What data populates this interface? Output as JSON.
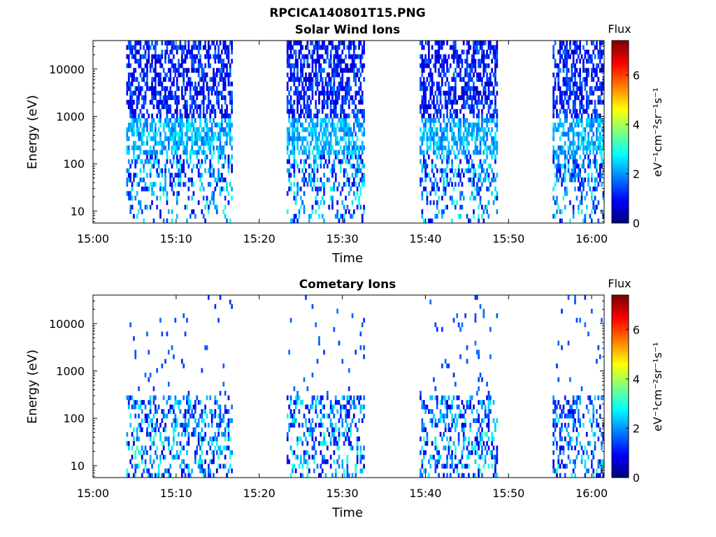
{
  "figure_title": "RPCICA140801T15.PNG",
  "colorbar_title": "Flux",
  "colorbar_label": "eV⁻¹cm⁻²sr⁻¹s⁻¹",
  "chart_data": [
    {
      "type": "heatmap",
      "title": "Solar Wind Ions",
      "xlabel": "Time",
      "ylabel": "Energy (eV)",
      "x_ticks": [
        "15:00",
        "15:10",
        "15:20",
        "15:30",
        "15:40",
        "15:50",
        "16:00"
      ],
      "x_range_min": [
        0,
        61.5
      ],
      "y_scale": "log",
      "y_ticks": [
        "10",
        "100",
        "1000",
        "10000"
      ],
      "y_range_eV": [
        5.6,
        40000
      ],
      "color_range": [
        0,
        7.4
      ],
      "colorbar_ticks": [
        "0",
        "2",
        "4",
        "6"
      ],
      "colormap": "jet",
      "active_intervals_min": [
        [
          4.0,
          16.6
        ],
        [
          23.3,
          32.6
        ],
        [
          39.3,
          48.6
        ],
        [
          55.3,
          61.4
        ]
      ],
      "bands": [
        {
          "energy_range_eV": [
            1000,
            40000
          ],
          "density": 0.55,
          "flux_range": [
            0.4,
            1.8
          ]
        },
        {
          "energy_range_eV": [
            150,
            1000
          ],
          "density": 0.6,
          "flux_range": [
            1.6,
            2.8
          ]
        },
        {
          "energy_range_eV": [
            25,
            150
          ],
          "density": 0.4,
          "flux_range": [
            0.5,
            3.0
          ]
        },
        {
          "energy_range_eV": [
            5.6,
            25
          ],
          "density": 0.22,
          "flux_range": [
            0.6,
            3.2
          ]
        }
      ]
    },
    {
      "type": "heatmap",
      "title": "Cometary Ions",
      "xlabel": "Time",
      "ylabel": "Energy (eV)",
      "x_ticks": [
        "15:00",
        "15:10",
        "15:20",
        "15:30",
        "15:40",
        "15:50",
        "16:00"
      ],
      "x_range_min": [
        0,
        61.5
      ],
      "y_scale": "log",
      "y_ticks": [
        "10",
        "100",
        "1000",
        "10000"
      ],
      "y_range_eV": [
        5.6,
        40000
      ],
      "color_range": [
        0,
        7.4
      ],
      "colorbar_ticks": [
        "0",
        "2",
        "4",
        "6"
      ],
      "colormap": "jet",
      "active_intervals_min": [
        [
          4.0,
          16.6
        ],
        [
          23.3,
          32.6
        ],
        [
          39.3,
          48.6
        ],
        [
          55.3,
          61.4
        ]
      ],
      "bands": [
        {
          "energy_range_eV": [
            300,
            40000
          ],
          "density": 0.03,
          "flux_range": [
            1.2,
            1.8
          ]
        },
        {
          "energy_range_eV": [
            60,
            300
          ],
          "density": 0.35,
          "flux_range": [
            0.5,
            2.8
          ]
        },
        {
          "energy_range_eV": [
            5.6,
            60
          ],
          "density": 0.32,
          "flux_range": [
            0.4,
            3.2
          ]
        }
      ]
    }
  ]
}
